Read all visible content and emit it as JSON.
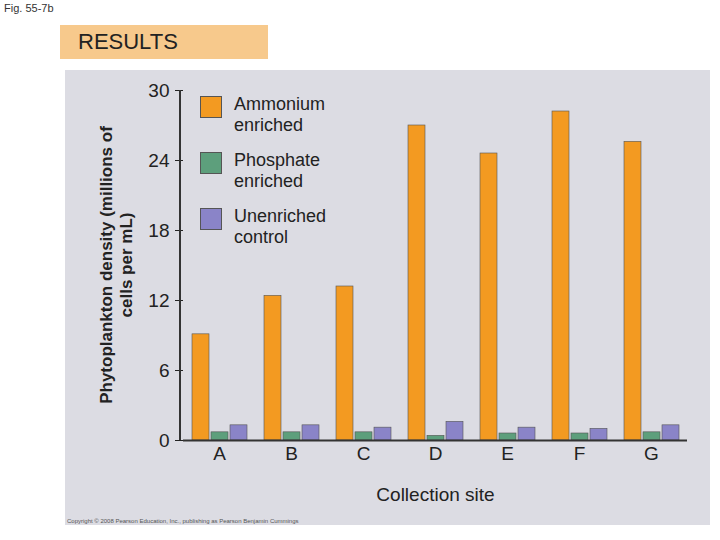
{
  "chart_data": {
    "type": "bar",
    "title": "RESULTS",
    "annotations": [
      "Fig. 55-7b",
      "Copyright © 2008 Pearson Education, Inc., publishing as Pearson Benjamin Cummings"
    ],
    "x_label": "Collection site",
    "y_label": "Phytoplankton density (millions of cells per mL)",
    "categories": [
      "A",
      "B",
      "C",
      "D",
      "E",
      "F",
      "G"
    ],
    "series": [
      {
        "name": "Ammonium enriched",
        "color": "#f39a21",
        "values": [
          9.1,
          12.4,
          13.2,
          27.0,
          24.6,
          28.2,
          25.6
        ]
      },
      {
        "name": "Phosphate enriched",
        "color": "#5d9f7c",
        "values": [
          0.7,
          0.7,
          0.7,
          0.4,
          0.6,
          0.6,
          0.7
        ]
      },
      {
        "name": "Unenriched control",
        "color": "#8a84c8",
        "values": [
          1.3,
          1.3,
          1.1,
          1.6,
          1.1,
          1.0,
          1.3
        ]
      }
    ],
    "ylim": [
      0,
      30
    ],
    "yticks": [
      0,
      6,
      12,
      18,
      24,
      30
    ],
    "legend": "top-left",
    "grid": false
  }
}
